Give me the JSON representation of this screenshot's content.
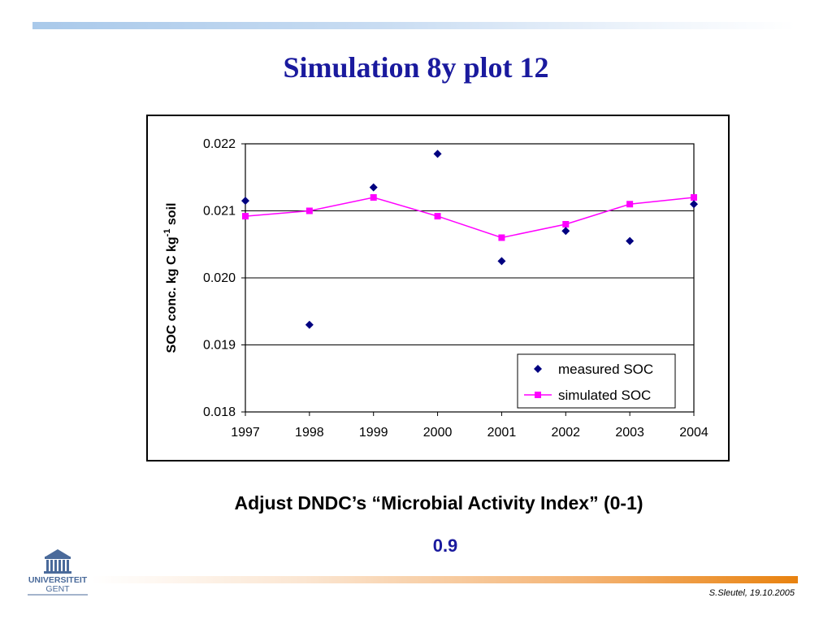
{
  "slide": {
    "title": "Simulation 8y plot 12",
    "subtitle": "Adjust DNDC’s “Microbial Activity Index” (0-1)",
    "value": "0.9",
    "footer": "S.Sleutel, 19.10.2005",
    "logo_text_line1": "UNIVERSITEIT",
    "logo_text_line2": "GENT"
  },
  "colors": {
    "title": "#1a1a9e",
    "measured": "#000080",
    "simulated": "#ff00ff",
    "logo": "#4a6a9a"
  },
  "chart_data": {
    "type": "line",
    "xlabel": "",
    "ylabel_parts": [
      "SOC conc. kg C kg",
      "-1",
      " soil"
    ],
    "x": [
      1997,
      1998,
      1999,
      2000,
      2001,
      2002,
      2003,
      2004
    ],
    "xlim": [
      1997,
      2004
    ],
    "ylim": [
      0.018,
      0.022
    ],
    "yticks": [
      "0.018",
      "0.019",
      "0.020",
      "0.021",
      "0.022"
    ],
    "xticks": [
      "1997",
      "1998",
      "1999",
      "2000",
      "2001",
      "2002",
      "2003",
      "2004"
    ],
    "grid": "horizontal",
    "legend_position": "bottom-right",
    "series": [
      {
        "name": "measured SOC",
        "marker": "diamond",
        "line": false,
        "values": [
          0.02115,
          0.0193,
          0.02135,
          0.02185,
          0.02025,
          0.0207,
          0.02055,
          0.0211
        ]
      },
      {
        "name": "simulated SOC",
        "marker": "square",
        "line": true,
        "values": [
          0.02092,
          0.021,
          0.0212,
          0.02092,
          0.0206,
          0.0208,
          0.0211,
          0.0212
        ]
      }
    ]
  }
}
